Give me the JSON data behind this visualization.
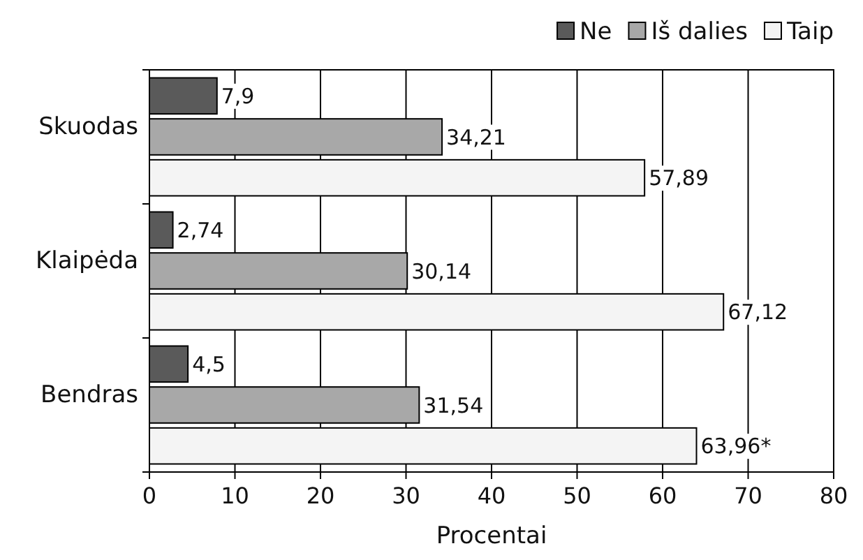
{
  "chart_data": {
    "type": "bar",
    "orientation": "horizontal",
    "categories": [
      "Skuodas",
      "Klaipėda",
      "Bendras"
    ],
    "series": [
      {
        "name": "Ne",
        "color": "#5a5a5a",
        "values": [
          7.9,
          2.74,
          4.5
        ],
        "value_labels": [
          "7,9",
          "2,74",
          "4,5"
        ]
      },
      {
        "name": "Iš dalies",
        "color": "#a8a8a8",
        "values": [
          34.21,
          30.14,
          31.54
        ],
        "value_labels": [
          "34,21",
          "30,14",
          "31,54"
        ]
      },
      {
        "name": "Taip",
        "color": "#f4f4f4",
        "values": [
          57.89,
          67.12,
          63.96
        ],
        "value_labels": [
          "57,89",
          "67,12",
          "63,96*"
        ]
      }
    ],
    "xlabel": "Procentai",
    "xlim": [
      0,
      80
    ],
    "xticks": [
      0,
      10,
      20,
      30,
      40,
      50,
      60,
      70,
      80
    ],
    "grid": "x",
    "legend": "top right"
  }
}
